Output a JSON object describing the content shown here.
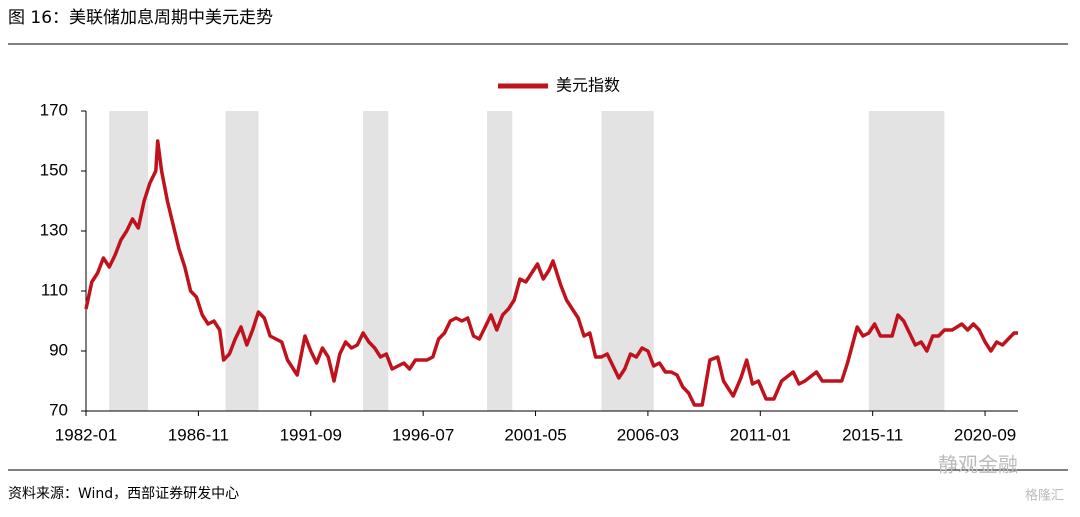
{
  "chart_data": {
    "type": "line",
    "title": "图 16：美联储加息周期中美元走势",
    "source": "资料来源：Wind，西部证券研发中心",
    "watermarks": [
      "静观金融",
      "格隆汇"
    ],
    "x": [
      "1982-01",
      "1982-04",
      "1982-07",
      "1982-10",
      "1983-01",
      "1983-04",
      "1983-07",
      "1983-10",
      "1984-01",
      "1984-04",
      "1984-07",
      "1984-10",
      "1985-01",
      "1985-02",
      "1985-04",
      "1985-07",
      "1985-10",
      "1986-01",
      "1986-04",
      "1986-07",
      "1986-10",
      "1987-01",
      "1987-04",
      "1987-07",
      "1987-10",
      "1987-12",
      "1988-03",
      "1988-06",
      "1988-09",
      "1988-12",
      "1989-03",
      "1989-06",
      "1989-09",
      "1989-12",
      "1990-03",
      "1990-06",
      "1990-09",
      "1990-12",
      "1991-02",
      "1991-06",
      "1991-09",
      "1991-12",
      "1992-03",
      "1992-06",
      "1992-09",
      "1992-12",
      "1993-03",
      "1993-06",
      "1993-09",
      "1993-12",
      "1994-03",
      "1994-06",
      "1994-09",
      "1994-12",
      "1995-03",
      "1995-06",
      "1995-09",
      "1995-12",
      "1996-03",
      "1996-06",
      "1996-09",
      "1996-12",
      "1997-03",
      "1997-06",
      "1997-09",
      "1997-12",
      "1998-03",
      "1998-06",
      "1998-09",
      "1998-12",
      "1999-03",
      "1999-06",
      "1999-09",
      "1999-12",
      "2000-03",
      "2000-06",
      "2000-09",
      "2000-12",
      "2001-03",
      "2001-06",
      "2001-09",
      "2001-12",
      "2002-02",
      "2002-06",
      "2002-09",
      "2002-12",
      "2003-03",
      "2003-06",
      "2003-09",
      "2003-12",
      "2004-03",
      "2004-06",
      "2004-12",
      "2005-03",
      "2005-06",
      "2005-09",
      "2005-12",
      "2006-03",
      "2006-06",
      "2006-09",
      "2006-12",
      "2007-03",
      "2007-06",
      "2007-09",
      "2007-12",
      "2008-03",
      "2008-07",
      "2008-11",
      "2009-03",
      "2009-06",
      "2009-11",
      "2010-03",
      "2010-06",
      "2010-09",
      "2010-12",
      "2011-04",
      "2011-08",
      "2011-12",
      "2012-06",
      "2012-09",
      "2012-12",
      "2013-06",
      "2013-09",
      "2013-12",
      "2014-04",
      "2014-07",
      "2014-10",
      "2015-03",
      "2015-06",
      "2015-09",
      "2015-12",
      "2016-03",
      "2016-06",
      "2016-09",
      "2016-12",
      "2017-03",
      "2017-06",
      "2017-09",
      "2017-12",
      "2018-03",
      "2018-06",
      "2018-09",
      "2018-12",
      "2019-04",
      "2019-09",
      "2019-12",
      "2020-03",
      "2020-06",
      "2020-09",
      "2020-12",
      "2021-03",
      "2021-06",
      "2021-09",
      "2021-12",
      "2022-02"
    ],
    "series": [
      {
        "name": "美元指数",
        "color": "#c0121c",
        "values": [
          104,
          113,
          116,
          121,
          118,
          122,
          127,
          130,
          134,
          131,
          140,
          146,
          150,
          160,
          150,
          140,
          132,
          124,
          118,
          110,
          108,
          102,
          99,
          100,
          97,
          87,
          89,
          94,
          98,
          92,
          97,
          103,
          101,
          95,
          94,
          93,
          87,
          84,
          82,
          95,
          90,
          86,
          91,
          88,
          80,
          89,
          93,
          91,
          92,
          96,
          93,
          91,
          88,
          89,
          84,
          85,
          86,
          84,
          87,
          87,
          87,
          88,
          94,
          96,
          100,
          101,
          100,
          101,
          95,
          94,
          98,
          102,
          97,
          102,
          104,
          107,
          114,
          113,
          116,
          119,
          114,
          117,
          120,
          112,
          107,
          104,
          101,
          95,
          96,
          88,
          88,
          89,
          81,
          84,
          89,
          88,
          91,
          90,
          85,
          86,
          83,
          83,
          82,
          78,
          76,
          72,
          72,
          87,
          88,
          80,
          75,
          81,
          87,
          79,
          80,
          74,
          74,
          80,
          83,
          79,
          80,
          83,
          80,
          80,
          80,
          80,
          86,
          98,
          95,
          96,
          99,
          95,
          95,
          95,
          102,
          100,
          96,
          92,
          93,
          90,
          95,
          95,
          97,
          97,
          99,
          97,
          99,
          97,
          93,
          90,
          93,
          92,
          94,
          96,
          96
        ]
      }
    ],
    "shaded_ranges": [
      [
        "1983-01",
        "1984-09"
      ],
      [
        "1988-01",
        "1989-06"
      ],
      [
        "1993-12",
        "1995-01"
      ],
      [
        "1999-04",
        "2000-05"
      ],
      [
        "2004-03",
        "2006-06"
      ],
      [
        "2015-09",
        "2018-12"
      ]
    ],
    "shade_color": "#e3e3e3",
    "xlim": [
      "1982-01",
      "2022-02"
    ],
    "xticks": [
      "1982-01",
      "1986-11",
      "1991-09",
      "1996-07",
      "2001-05",
      "2006-03",
      "2011-01",
      "2015-11",
      "2020-09"
    ],
    "ylim": [
      70,
      170
    ],
    "yticks": [
      70,
      90,
      110,
      130,
      150,
      170
    ],
    "grid": false
  }
}
